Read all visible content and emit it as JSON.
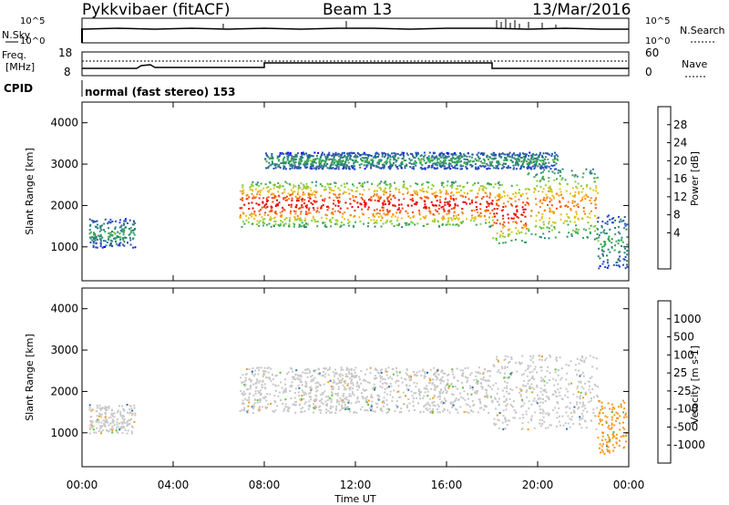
{
  "header": {
    "station": "Pykkvibaer (fitACF)",
    "beam": "Beam 13",
    "date": "13/Mar/2016"
  },
  "noise_panel": {
    "left_label": "N.Sky",
    "left_ticks": [
      "10^5",
      "10^0"
    ],
    "right_ticks": [
      "10^5",
      "10^0"
    ],
    "right_label": "N.Search"
  },
  "freq_panel": {
    "left_label_1": "Freq.",
    "left_label_2": "[MHz]",
    "left_ticks": [
      "18",
      "8"
    ],
    "right_ticks": [
      "60",
      "0"
    ],
    "right_label": "Nave"
  },
  "cpid_label": "CPID",
  "mode_text": "normal (fast stereo) 153",
  "power_panel": {
    "ylabel": "Slant Range [km]",
    "yticks": [
      "4000",
      "3000",
      "2000",
      "1000"
    ],
    "colorbar_label": "Power [dB]",
    "colorbar_ticks": [
      "28",
      "24",
      "20",
      "16",
      "12",
      "8",
      "4"
    ],
    "colors": [
      "#0000ff",
      "#2a4fb8",
      "#2e7f7f",
      "#3aa657",
      "#8ccf3c",
      "#e7c21d",
      "#f58a1a",
      "#f24a10",
      "#e60000"
    ]
  },
  "velocity_panel": {
    "ylabel": "Slant Range [km]",
    "yticks": [
      "4000",
      "3000",
      "2000",
      "1000"
    ],
    "colorbar_label": "Velocity [m s-1]",
    "colorbar_ticks": [
      "1000",
      "500",
      "100",
      "25",
      "-25",
      "-100",
      "-500",
      "-1000"
    ],
    "colors": [
      "#1f3fa6",
      "#2d6fb0",
      "#2f8a5a",
      "#5cc13c",
      "#c8c8c8",
      "#d9c23a",
      "#f59a21",
      "#f2621b",
      "#e60000"
    ]
  },
  "xaxis": {
    "label": "Time UT",
    "ticks": [
      "00:00",
      "04:00",
      "08:00",
      "12:00",
      "16:00",
      "20:00",
      "00:00"
    ]
  },
  "chart_data": {
    "type": "heatmap",
    "title": "Pykkvibaer (fitACF) Beam 13 13/Mar/2016",
    "xlabel": "Time UT",
    "xlim": [
      0,
      24
    ],
    "ylabel": "Slant Range [km]",
    "ylim": [
      180,
      4500
    ],
    "panels": [
      {
        "quantity": "Power [dB]",
        "scale": [
          0,
          30
        ],
        "scatter_bands": [
          {
            "t_start": 0.3,
            "t_end": 2.3,
            "range_low": 1000,
            "range_high": 1700,
            "peak_power_db": 12
          },
          {
            "t_start": 6.9,
            "t_end": 8.0,
            "range_low": 1500,
            "range_high": 2600,
            "peak_power_db": 30
          },
          {
            "t_start": 8.0,
            "t_end": 18.0,
            "range_low": 1500,
            "range_high": 2600,
            "peak_power_db": 30
          },
          {
            "t_start": 8.0,
            "t_end": 20.9,
            "range_low": 2900,
            "range_high": 3300,
            "peak_power_db": 12
          },
          {
            "t_start": 18.0,
            "t_end": 19.5,
            "range_low": 1100,
            "range_high": 2600,
            "peak_power_db": 30
          },
          {
            "t_start": 19.5,
            "t_end": 22.6,
            "range_low": 1200,
            "range_high": 2900,
            "peak_power_db": 24
          },
          {
            "t_start": 22.6,
            "t_end": 23.9,
            "range_low": 500,
            "range_high": 1800,
            "peak_power_db": 12
          }
        ]
      },
      {
        "quantity": "Velocity [m s-1]",
        "scale": [
          -1000,
          1000
        ],
        "scatter_bands": [
          {
            "t_start": 0.3,
            "t_end": 2.3,
            "range_low": 1000,
            "range_high": 1700,
            "velocity": 0
          },
          {
            "t_start": 6.9,
            "t_end": 18.0,
            "range_low": 1500,
            "range_high": 2600,
            "velocity": 0
          },
          {
            "t_start": 18.0,
            "t_end": 22.6,
            "range_low": 1100,
            "range_high": 2900,
            "velocity": 0
          },
          {
            "t_start": 22.6,
            "t_end": 23.9,
            "range_low": 500,
            "range_high": 1800,
            "velocity": -500
          }
        ]
      }
    ],
    "frequency_mhz_segments": [
      {
        "t_start": 0.0,
        "t_end": 8.0,
        "value": 10.8
      },
      {
        "t_start": 8.0,
        "t_end": 18.0,
        "value": 12.5
      },
      {
        "t_start": 18.0,
        "t_end": 24.0,
        "value": 10.8
      }
    ]
  }
}
